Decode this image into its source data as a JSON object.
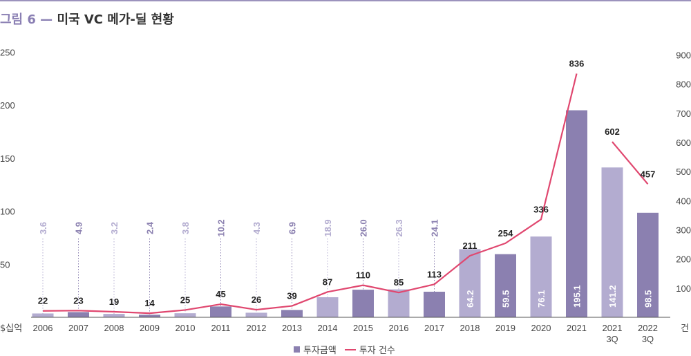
{
  "figure": {
    "prefix": "그림 6 —",
    "title": "미국 VC 메가-딜 현황"
  },
  "legend": {
    "bar_label": "투자금액",
    "line_label": "투자 건수"
  },
  "colors": {
    "bar_dark": "#8b80b0",
    "bar_light": "#b3acd0",
    "line": "#e0476f",
    "title_accent": "#8a7fb3"
  },
  "chart_data": {
    "type": "bar",
    "title": "미국 VC 메가-딜 현황",
    "categories": [
      "2006",
      "2007",
      "2008",
      "2009",
      "2010",
      "2011",
      "2012",
      "2013",
      "2014",
      "2015",
      "2016",
      "2017",
      "2018",
      "2019",
      "2020",
      "2021",
      "2021\n3Q",
      "2022\n3Q"
    ],
    "y_left_unit": "$십억",
    "y_right_unit": "건",
    "y_left_ticks": [
      50,
      100,
      150,
      200,
      250
    ],
    "y_right_ticks": [
      100,
      200,
      300,
      400,
      500,
      600,
      700,
      800,
      900
    ],
    "y_left_range": [
      0,
      250
    ],
    "y_right_range": [
      0,
      900
    ],
    "grid": false,
    "legend_position": "bottom-center",
    "series": [
      {
        "name": "투자금액",
        "kind": "bar",
        "axis": "left",
        "values": [
          3.6,
          4.9,
          3.2,
          2.4,
          3.8,
          10.2,
          4.3,
          6.9,
          18.9,
          26.0,
          26.3,
          24.1,
          64.2,
          59.5,
          76.1,
          195.1,
          141.2,
          98.5
        ],
        "labels": [
          "3.6",
          "4.9",
          "3.2",
          "2.4",
          "3.8",
          "10.2",
          "4.3",
          "6.9",
          "18.9",
          "26.0",
          "26.3",
          "24.1",
          "64.2",
          "59.5",
          "76.1",
          "195.1",
          "141.2",
          "98.5"
        ],
        "shade": [
          "light",
          "dark",
          "light",
          "dark",
          "light",
          "dark",
          "light",
          "dark",
          "light",
          "dark",
          "light",
          "dark",
          "light",
          "dark",
          "light",
          "dark",
          "light",
          "dark"
        ]
      },
      {
        "name": "투자 건수",
        "kind": "line",
        "axis": "right",
        "values": [
          22,
          23,
          19,
          14,
          25,
          45,
          26,
          39,
          87,
          110,
          85,
          113,
          211,
          254,
          336,
          836,
          602,
          457
        ],
        "labels": [
          "22",
          "23",
          "19",
          "14",
          "25",
          "45",
          "26",
          "39",
          "87",
          "110",
          "85",
          "113",
          "211",
          "254",
          "336",
          "836",
          "602",
          "457"
        ],
        "segments": [
          [
            0,
            15
          ],
          [
            16,
            17
          ]
        ]
      }
    ]
  }
}
